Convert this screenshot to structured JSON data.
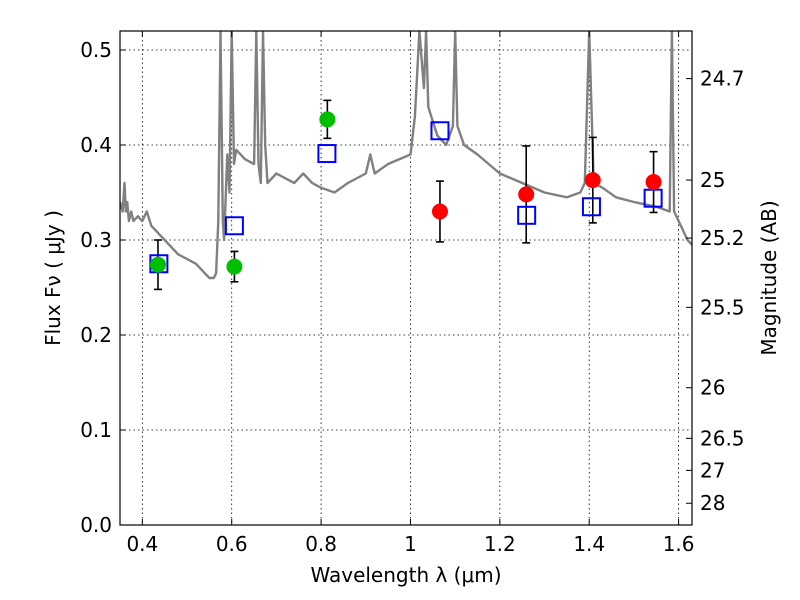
{
  "chart_data": {
    "type": "scatter",
    "xlabel": "Wavelength  λ (μm)",
    "ylabel": "Flux  Fν  ( μJy )",
    "y2label": "Magnitude (AB)",
    "xlim": [
      0.35,
      1.63
    ],
    "ylim": [
      0.0,
      0.52
    ],
    "grid": true,
    "xticks": [
      0.4,
      0.6,
      0.8,
      1.0,
      1.2,
      1.4,
      1.6
    ],
    "xtick_labels": [
      "0.4",
      "0.6",
      "0.8",
      "1",
      "1.2",
      "1.4",
      "1.6"
    ],
    "yticks": [
      0.0,
      0.1,
      0.2,
      0.3,
      0.4,
      0.5
    ],
    "ytick_labels": [
      "0.0",
      "0.1",
      "0.2",
      "0.3",
      "0.4",
      "0.5"
    ],
    "right_axis_ticks": [
      {
        "label": "24.7",
        "flux": 0.4699
      },
      {
        "label": "25",
        "flux": 0.3631
      },
      {
        "label": "25.2",
        "flux": 0.302
      },
      {
        "label": "25.5",
        "flux": 0.2291
      },
      {
        "label": "26",
        "flux": 0.1445
      },
      {
        "label": "26.5",
        "flux": 0.0912
      },
      {
        "label": "27",
        "flux": 0.0575
      },
      {
        "label": "28",
        "flux": 0.0229
      }
    ],
    "series": [
      {
        "name": "green-observed",
        "color": "#00bf00",
        "marker": "circle",
        "points": [
          {
            "x": 0.435,
            "y": 0.274,
            "err": 0.026
          },
          {
            "x": 0.606,
            "y": 0.272,
            "err": 0.016
          },
          {
            "x": 0.814,
            "y": 0.427,
            "err": 0.02
          }
        ]
      },
      {
        "name": "red-observed",
        "color": "#ff0000",
        "marker": "circle",
        "points": [
          {
            "x": 1.066,
            "y": 0.33,
            "err": 0.032
          },
          {
            "x": 1.259,
            "y": 0.348,
            "err": 0.051
          },
          {
            "x": 1.408,
            "y": 0.363,
            "err": 0.045
          },
          {
            "x": 1.544,
            "y": 0.361,
            "err": 0.032
          }
        ]
      },
      {
        "name": "model-synthetic",
        "color": "#0000ff",
        "marker": "open-square",
        "points": [
          {
            "x": 0.437,
            "y": 0.275
          },
          {
            "x": 0.606,
            "y": 0.315
          },
          {
            "x": 0.813,
            "y": 0.391
          },
          {
            "x": 1.066,
            "y": 0.415
          },
          {
            "x": 1.26,
            "y": 0.326
          },
          {
            "x": 1.405,
            "y": 0.335
          },
          {
            "x": 1.543,
            "y": 0.344
          }
        ]
      },
      {
        "name": "model-spectrum",
        "color": "#808080",
        "type": "line",
        "x": [
          0.35,
          0.356,
          0.36,
          0.363,
          0.366,
          0.37,
          0.375,
          0.38,
          0.39,
          0.4,
          0.41,
          0.42,
          0.43,
          0.44,
          0.45,
          0.46,
          0.47,
          0.48,
          0.5,
          0.52,
          0.54,
          0.55,
          0.56,
          0.565,
          0.57,
          0.575,
          0.578,
          0.58,
          0.583,
          0.586,
          0.59,
          0.595,
          0.6,
          0.605,
          0.61,
          0.63,
          0.65,
          0.655,
          0.66,
          0.665,
          0.67,
          0.675,
          0.68,
          0.7,
          0.72,
          0.74,
          0.76,
          0.78,
          0.8,
          0.83,
          0.86,
          0.9,
          0.91,
          0.92,
          0.95,
          1.0,
          1.005,
          1.01,
          1.02,
          1.03,
          1.035,
          1.04,
          1.06,
          1.08,
          1.095,
          1.1,
          1.105,
          1.12,
          1.15,
          1.2,
          1.25,
          1.3,
          1.35,
          1.38,
          1.39,
          1.4,
          1.41,
          1.43,
          1.46,
          1.5,
          1.55,
          1.58,
          1.585,
          1.59,
          1.6,
          1.61,
          1.62,
          1.63
        ],
        "y": [
          0.34,
          0.33,
          0.36,
          0.33,
          0.34,
          0.32,
          0.33,
          0.32,
          0.325,
          0.32,
          0.33,
          0.315,
          0.31,
          0.305,
          0.3,
          0.295,
          0.29,
          0.285,
          0.28,
          0.275,
          0.265,
          0.26,
          0.26,
          0.265,
          0.32,
          0.52,
          0.4,
          0.32,
          0.3,
          0.34,
          0.39,
          0.35,
          0.52,
          0.38,
          0.395,
          0.385,
          0.38,
          0.52,
          0.38,
          0.36,
          0.52,
          0.4,
          0.36,
          0.37,
          0.365,
          0.36,
          0.37,
          0.36,
          0.355,
          0.35,
          0.36,
          0.37,
          0.39,
          0.37,
          0.38,
          0.39,
          0.41,
          0.43,
          0.52,
          0.46,
          0.52,
          0.44,
          0.41,
          0.4,
          0.42,
          0.52,
          0.42,
          0.4,
          0.39,
          0.37,
          0.36,
          0.35,
          0.345,
          0.35,
          0.36,
          0.52,
          0.36,
          0.355,
          0.345,
          0.34,
          0.335,
          0.33,
          0.52,
          0.33,
          0.32,
          0.31,
          0.3,
          0.295
        ]
      }
    ]
  }
}
